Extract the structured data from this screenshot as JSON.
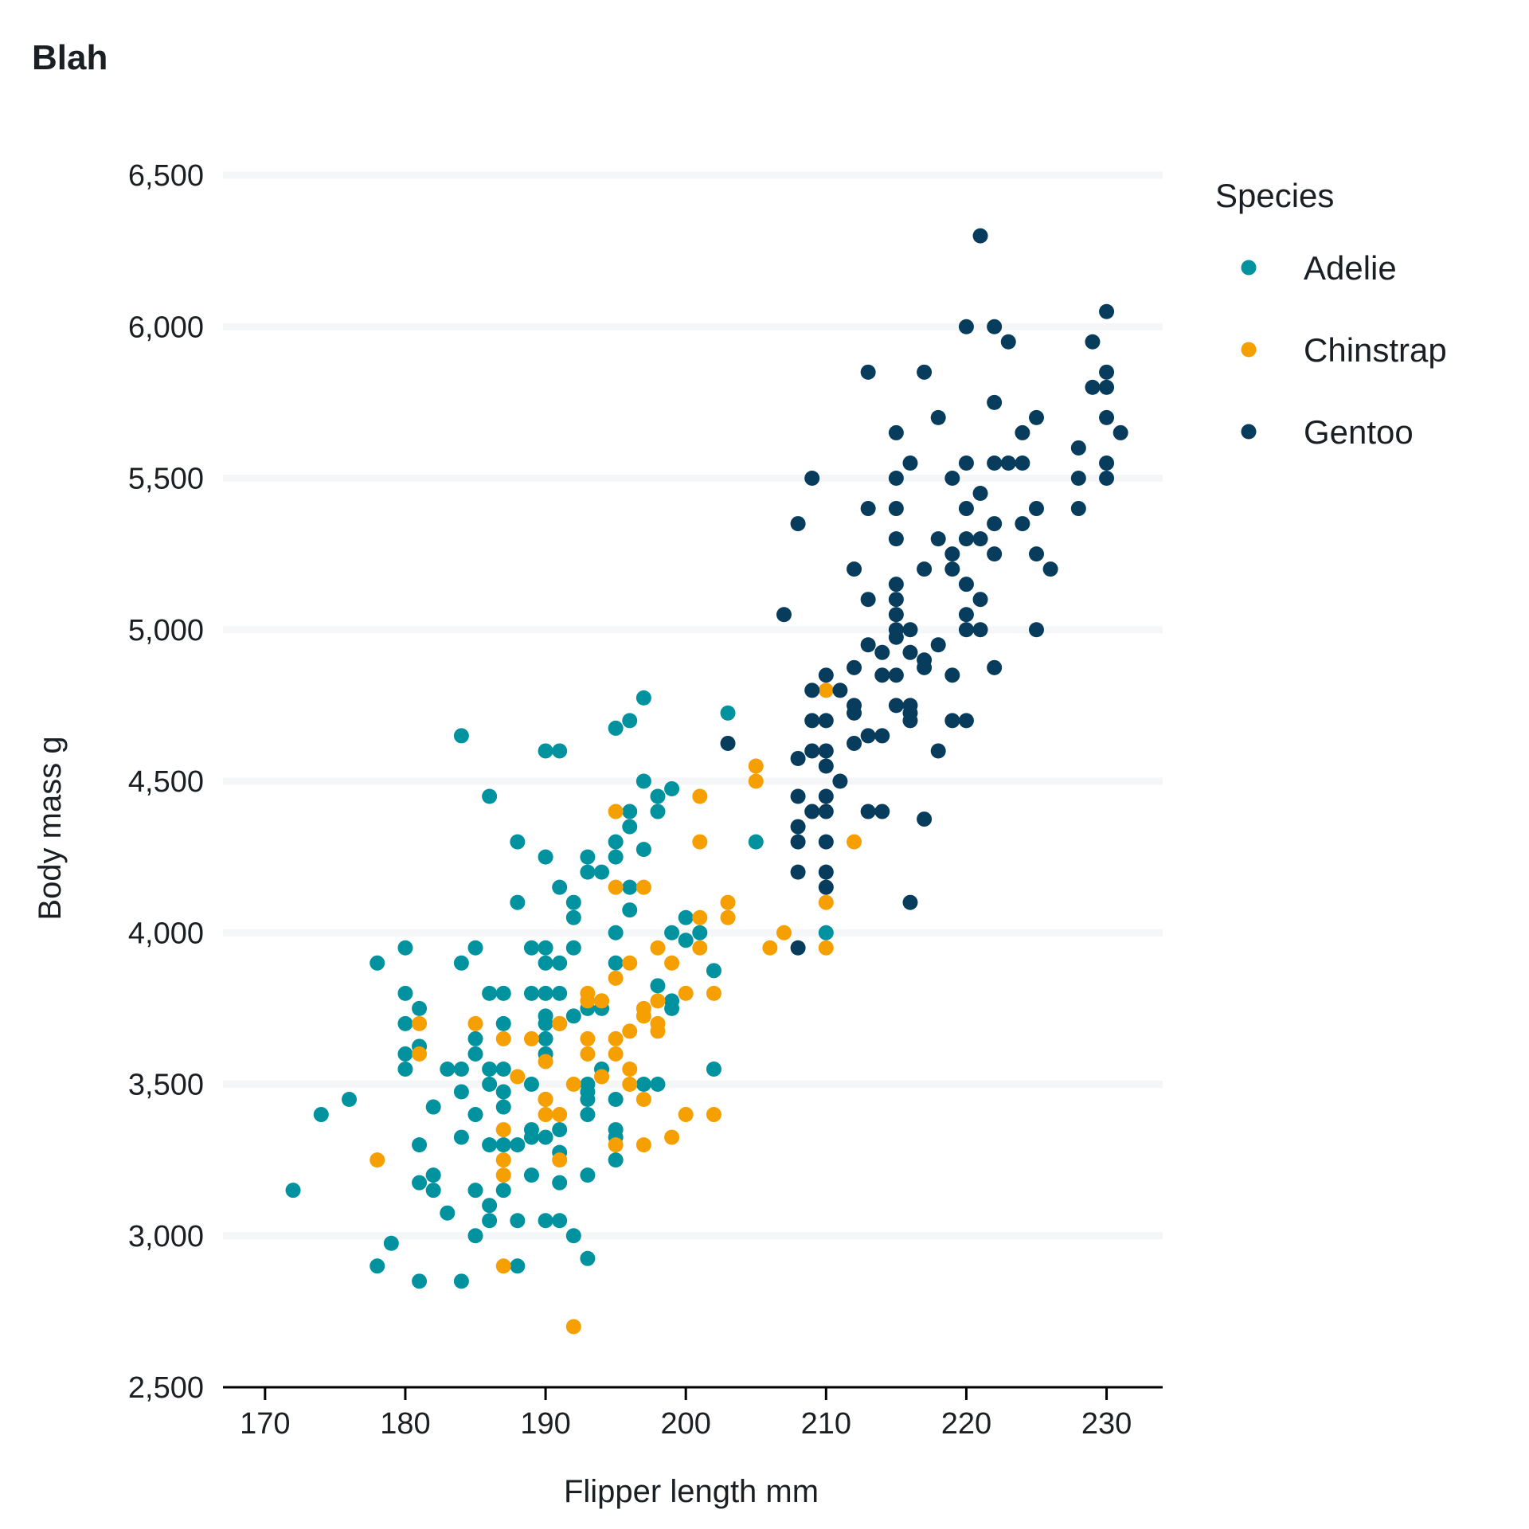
{
  "chart_data": {
    "type": "scatter",
    "title": "Blah",
    "xlabel": "Flipper length mm",
    "ylabel": "Body mass g",
    "xlim": [
      167,
      234
    ],
    "ylim": [
      2500,
      6500
    ],
    "xticks": [
      170,
      180,
      190,
      200,
      210,
      220,
      230
    ],
    "yticks": [
      2500,
      3000,
      3500,
      4000,
      4500,
      5000,
      5500,
      6000,
      6500
    ],
    "xtick_labels": [
      "170",
      "180",
      "190",
      "200",
      "210",
      "220",
      "230"
    ],
    "ytick_labels": [
      "2,500",
      "3,000",
      "3,500",
      "4,000",
      "4,500",
      "5,000",
      "5,500",
      "6,000",
      "6,500"
    ],
    "grid": "horizontal",
    "legend": {
      "title": "Species",
      "placement": "right"
    },
    "series": [
      {
        "name": "Adelie",
        "color": "#00929e",
        "points": [
          [
            172,
            3150
          ],
          [
            174,
            3400
          ],
          [
            176,
            3450
          ],
          [
            178,
            3900
          ],
          [
            178,
            2900
          ],
          [
            179,
            2975
          ],
          [
            180,
            3950
          ],
          [
            180,
            3800
          ],
          [
            180,
            3700
          ],
          [
            180,
            3600
          ],
          [
            180,
            3550
          ],
          [
            181,
            3750
          ],
          [
            181,
            3625
          ],
          [
            181,
            3300
          ],
          [
            181,
            3175
          ],
          [
            181,
            2850
          ],
          [
            182,
            3425
          ],
          [
            182,
            3200
          ],
          [
            182,
            3150
          ],
          [
            183,
            3550
          ],
          [
            183,
            3075
          ],
          [
            184,
            4650
          ],
          [
            184,
            3900
          ],
          [
            184,
            3550
          ],
          [
            184,
            3475
          ],
          [
            184,
            3325
          ],
          [
            184,
            2850
          ],
          [
            185,
            3950
          ],
          [
            185,
            3650
          ],
          [
            185,
            3600
          ],
          [
            185,
            3400
          ],
          [
            185,
            3150
          ],
          [
            185,
            3000
          ],
          [
            186,
            4450
          ],
          [
            186,
            3800
          ],
          [
            186,
            3550
          ],
          [
            186,
            3500
          ],
          [
            186,
            3300
          ],
          [
            186,
            3100
          ],
          [
            186,
            3050
          ],
          [
            187,
            3800
          ],
          [
            187,
            3700
          ],
          [
            187,
            3550
          ],
          [
            187,
            3475
          ],
          [
            187,
            3425
          ],
          [
            187,
            3300
          ],
          [
            187,
            3150
          ],
          [
            188,
            4300
          ],
          [
            188,
            4100
          ],
          [
            188,
            3300
          ],
          [
            188,
            3050
          ],
          [
            188,
            2900
          ],
          [
            189,
            3950
          ],
          [
            189,
            3800
          ],
          [
            189,
            3500
          ],
          [
            189,
            3350
          ],
          [
            189,
            3325
          ],
          [
            189,
            3200
          ],
          [
            190,
            4600
          ],
          [
            190,
            4250
          ],
          [
            190,
            3950
          ],
          [
            190,
            3900
          ],
          [
            190,
            3800
          ],
          [
            190,
            3725
          ],
          [
            190,
            3700
          ],
          [
            190,
            3650
          ],
          [
            190,
            3600
          ],
          [
            190,
            3450
          ],
          [
            190,
            3325
          ],
          [
            190,
            3050
          ],
          [
            191,
            4600
          ],
          [
            191,
            4150
          ],
          [
            191,
            3900
          ],
          [
            191,
            3800
          ],
          [
            191,
            3700
          ],
          [
            191,
            3350
          ],
          [
            191,
            3275
          ],
          [
            191,
            3175
          ],
          [
            191,
            3050
          ],
          [
            192,
            4100
          ],
          [
            192,
            4050
          ],
          [
            192,
            3950
          ],
          [
            192,
            3725
          ],
          [
            192,
            3000
          ],
          [
            193,
            4250
          ],
          [
            193,
            4200
          ],
          [
            193,
            3750
          ],
          [
            193,
            3500
          ],
          [
            193,
            3475
          ],
          [
            193,
            3450
          ],
          [
            193,
            3400
          ],
          [
            193,
            3200
          ],
          [
            193,
            2925
          ],
          [
            194,
            4200
          ],
          [
            194,
            3775
          ],
          [
            194,
            3750
          ],
          [
            194,
            3550
          ],
          [
            195,
            4675
          ],
          [
            195,
            4300
          ],
          [
            195,
            4250
          ],
          [
            195,
            4000
          ],
          [
            195,
            3900
          ],
          [
            195,
            3450
          ],
          [
            195,
            3350
          ],
          [
            195,
            3325
          ],
          [
            195,
            3250
          ],
          [
            196,
            4700
          ],
          [
            196,
            4400
          ],
          [
            196,
            4350
          ],
          [
            196,
            4150
          ],
          [
            196,
            4075
          ],
          [
            197,
            4775
          ],
          [
            197,
            4500
          ],
          [
            197,
            4275
          ],
          [
            197,
            3500
          ],
          [
            198,
            4450
          ],
          [
            198,
            4400
          ],
          [
            198,
            3825
          ],
          [
            198,
            3500
          ],
          [
            199,
            4475
          ],
          [
            199,
            4000
          ],
          [
            199,
            3775
          ],
          [
            199,
            3750
          ],
          [
            200,
            4050
          ],
          [
            200,
            3975
          ],
          [
            201,
            4000
          ],
          [
            202,
            3875
          ],
          [
            202,
            3550
          ],
          [
            203,
            4725
          ],
          [
            205,
            4300
          ],
          [
            210,
            4000
          ]
        ]
      },
      {
        "name": "Chinstrap",
        "color": "#f5a000",
        "points": [
          [
            178,
            3250
          ],
          [
            181,
            3700
          ],
          [
            181,
            3600
          ],
          [
            185,
            3700
          ],
          [
            187,
            3650
          ],
          [
            187,
            3350
          ],
          [
            187,
            3250
          ],
          [
            187,
            3200
          ],
          [
            187,
            2900
          ],
          [
            188,
            3525
          ],
          [
            189,
            3650
          ],
          [
            190,
            3575
          ],
          [
            190,
            3450
          ],
          [
            190,
            3400
          ],
          [
            191,
            3700
          ],
          [
            191,
            3400
          ],
          [
            191,
            3250
          ],
          [
            192,
            3500
          ],
          [
            192,
            2700
          ],
          [
            193,
            3800
          ],
          [
            193,
            3775
          ],
          [
            193,
            3650
          ],
          [
            193,
            3600
          ],
          [
            194,
            3775
          ],
          [
            194,
            3525
          ],
          [
            195,
            4400
          ],
          [
            195,
            4150
          ],
          [
            195,
            3850
          ],
          [
            195,
            3650
          ],
          [
            195,
            3600
          ],
          [
            195,
            3300
          ],
          [
            196,
            3900
          ],
          [
            196,
            3675
          ],
          [
            196,
            3550
          ],
          [
            196,
            3500
          ],
          [
            197,
            4150
          ],
          [
            197,
            3750
          ],
          [
            197,
            3725
          ],
          [
            197,
            3450
          ],
          [
            197,
            3300
          ],
          [
            198,
            3950
          ],
          [
            198,
            3775
          ],
          [
            198,
            3700
          ],
          [
            198,
            3675
          ],
          [
            199,
            3900
          ],
          [
            199,
            3325
          ],
          [
            200,
            3800
          ],
          [
            200,
            3400
          ],
          [
            201,
            4450
          ],
          [
            201,
            4300
          ],
          [
            201,
            4050
          ],
          [
            201,
            3950
          ],
          [
            202,
            3800
          ],
          [
            202,
            3400
          ],
          [
            203,
            4100
          ],
          [
            203,
            4050
          ],
          [
            205,
            4550
          ],
          [
            205,
            4500
          ],
          [
            206,
            3950
          ],
          [
            207,
            4000
          ],
          [
            210,
            4800
          ],
          [
            210,
            4100
          ],
          [
            210,
            3950
          ],
          [
            212,
            4300
          ]
        ]
      },
      {
        "name": "Gentoo",
        "color": "#073c5c",
        "points": [
          [
            203,
            4625
          ],
          [
            207,
            5050
          ],
          [
            208,
            5350
          ],
          [
            208,
            4575
          ],
          [
            208,
            4450
          ],
          [
            208,
            4350
          ],
          [
            208,
            4300
          ],
          [
            208,
            4200
          ],
          [
            208,
            3950
          ],
          [
            209,
            5500
          ],
          [
            209,
            4800
          ],
          [
            209,
            4700
          ],
          [
            209,
            4600
          ],
          [
            209,
            4400
          ],
          [
            210,
            4850
          ],
          [
            210,
            4700
          ],
          [
            210,
            4600
          ],
          [
            210,
            4550
          ],
          [
            210,
            4450
          ],
          [
            210,
            4400
          ],
          [
            210,
            4300
          ],
          [
            210,
            4200
          ],
          [
            210,
            4150
          ],
          [
            211,
            4800
          ],
          [
            211,
            4500
          ],
          [
            212,
            5200
          ],
          [
            212,
            4875
          ],
          [
            212,
            4750
          ],
          [
            212,
            4725
          ],
          [
            212,
            4625
          ],
          [
            213,
            5850
          ],
          [
            213,
            5400
          ],
          [
            213,
            5100
          ],
          [
            213,
            4950
          ],
          [
            213,
            4650
          ],
          [
            213,
            4400
          ],
          [
            214,
            4925
          ],
          [
            214,
            4850
          ],
          [
            214,
            4650
          ],
          [
            214,
            4400
          ],
          [
            215,
            5650
          ],
          [
            215,
            5500
          ],
          [
            215,
            5400
          ],
          [
            215,
            5300
          ],
          [
            215,
            5150
          ],
          [
            215,
            5100
          ],
          [
            215,
            5050
          ],
          [
            215,
            5000
          ],
          [
            215,
            4975
          ],
          [
            215,
            4850
          ],
          [
            215,
            4750
          ],
          [
            216,
            5550
          ],
          [
            216,
            5000
          ],
          [
            216,
            4925
          ],
          [
            216,
            4750
          ],
          [
            216,
            4725
          ],
          [
            216,
            4700
          ],
          [
            216,
            4100
          ],
          [
            217,
            5850
          ],
          [
            217,
            5200
          ],
          [
            217,
            4900
          ],
          [
            217,
            4875
          ],
          [
            217,
            4375
          ],
          [
            218,
            5700
          ],
          [
            218,
            5300
          ],
          [
            218,
            4950
          ],
          [
            218,
            4600
          ],
          [
            219,
            5500
          ],
          [
            219,
            5250
          ],
          [
            219,
            5200
          ],
          [
            219,
            4850
          ],
          [
            219,
            4700
          ],
          [
            220,
            6000
          ],
          [
            220,
            5550
          ],
          [
            220,
            5400
          ],
          [
            220,
            5300
          ],
          [
            220,
            5150
          ],
          [
            220,
            5050
          ],
          [
            220,
            5000
          ],
          [
            220,
            4700
          ],
          [
            221,
            6300
          ],
          [
            221,
            5450
          ],
          [
            221,
            5300
          ],
          [
            221,
            5100
          ],
          [
            221,
            5000
          ],
          [
            222,
            6000
          ],
          [
            222,
            5750
          ],
          [
            222,
            5550
          ],
          [
            222,
            5350
          ],
          [
            222,
            5250
          ],
          [
            222,
            4875
          ],
          [
            223,
            5950
          ],
          [
            223,
            5550
          ],
          [
            224,
            5650
          ],
          [
            224,
            5550
          ],
          [
            224,
            5350
          ],
          [
            225,
            5700
          ],
          [
            225,
            5400
          ],
          [
            225,
            5250
          ],
          [
            225,
            5000
          ],
          [
            226,
            5200
          ],
          [
            228,
            5600
          ],
          [
            228,
            5500
          ],
          [
            228,
            5400
          ],
          [
            229,
            5950
          ],
          [
            229,
            5800
          ],
          [
            230,
            6050
          ],
          [
            230,
            5850
          ],
          [
            230,
            5800
          ],
          [
            230,
            5700
          ],
          [
            230,
            5550
          ],
          [
            230,
            5500
          ],
          [
            231,
            5650
          ]
        ]
      }
    ]
  }
}
